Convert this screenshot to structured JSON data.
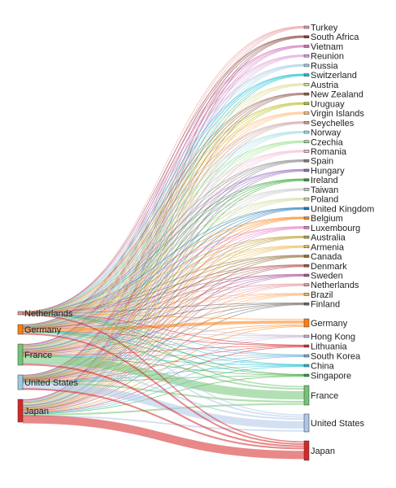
{
  "chart_data": {
    "type": "sankey",
    "title": "",
    "sources": [
      {
        "name": "Netherlands",
        "color": "#e7969c",
        "value": 1
      },
      {
        "name": "Germany",
        "color": "#ff7f0e",
        "value": 3
      },
      {
        "name": "France",
        "color": "#74c476",
        "value": 8
      },
      {
        "name": "United States",
        "color": "#9ecae1",
        "value": 5
      },
      {
        "name": "Japan",
        "color": "#d62728",
        "value": 9
      }
    ],
    "targets": [
      {
        "name": "Turkey",
        "color": "#e7969c",
        "value": 0.3
      },
      {
        "name": "South Africa",
        "color": "#843c39",
        "value": 0.3
      },
      {
        "name": "Vietnam",
        "color": "#ce6dbd",
        "value": 0.3
      },
      {
        "name": "Reunion",
        "color": "#de9ed6",
        "value": 0.3
      },
      {
        "name": "Russia",
        "color": "#9ecae1",
        "value": 0.3
      },
      {
        "name": "Switzerland",
        "color": "#17becf",
        "value": 0.3
      },
      {
        "name": "Austria",
        "color": "#dbdb8d",
        "value": 0.3
      },
      {
        "name": "New Zealand",
        "color": "#8c564b",
        "value": 0.3
      },
      {
        "name": "Uruguay",
        "color": "#bcbd22",
        "value": 0.3
      },
      {
        "name": "Virgin Islands",
        "color": "#ffbb78",
        "value": 0.3
      },
      {
        "name": "Seychelles",
        "color": "#c49c94",
        "value": 0.3
      },
      {
        "name": "Norway",
        "color": "#9edae5",
        "value": 0.3
      },
      {
        "name": "Czechia",
        "color": "#98df8a",
        "value": 0.3
      },
      {
        "name": "Romania",
        "color": "#f7b6d2",
        "value": 0.3
      },
      {
        "name": "Spain",
        "color": "#7f7f7f",
        "value": 0.3
      },
      {
        "name": "Hungary",
        "color": "#9467bd",
        "value": 0.3
      },
      {
        "name": "Ireland",
        "color": "#2ca02c",
        "value": 0.3
      },
      {
        "name": "Taiwan",
        "color": "#c7c7c7",
        "value": 0.3
      },
      {
        "name": "Poland",
        "color": "#cedb9c",
        "value": 0.3
      },
      {
        "name": "United Kingdom",
        "color": "#1f77b4",
        "value": 0.3
      },
      {
        "name": "Belgium",
        "color": "#ff7f0e",
        "value": 0.3
      },
      {
        "name": "Luxembourg",
        "color": "#e377c2",
        "value": 0.3
      },
      {
        "name": "Australia",
        "color": "#bd9e39",
        "value": 0.3
      },
      {
        "name": "Armenia",
        "color": "#e7ba52",
        "value": 0.3
      },
      {
        "name": "Canada",
        "color": "#8c6d31",
        "value": 0.3
      },
      {
        "name": "Denmark",
        "color": "#ad494a",
        "value": 0.3
      },
      {
        "name": "Sweden",
        "color": "#a55194",
        "value": 0.3
      },
      {
        "name": "Netherlands",
        "color": "#e7969c",
        "value": 0.3
      },
      {
        "name": "Brazil",
        "color": "#fdae6b",
        "value": 0.3
      },
      {
        "name": "Finland",
        "color": "#636363",
        "value": 0.3
      },
      {
        "name": "Germany",
        "color": "#ff7f0e",
        "value": 1.5
      },
      {
        "name": "Hong Kong",
        "color": "#c5b0d5",
        "value": 0.3
      },
      {
        "name": "Lithuania",
        "color": "#d62728",
        "value": 0.3
      },
      {
        "name": "South Korea",
        "color": "#6baed6",
        "value": 0.3
      },
      {
        "name": "China",
        "color": "#17becf",
        "value": 0.3
      },
      {
        "name": "Singapore",
        "color": "#2ca02c",
        "value": 0.3
      },
      {
        "name": "France",
        "color": "#74c476",
        "value": 3.5
      },
      {
        "name": "United States",
        "color": "#aec7e8",
        "value": 3.5
      },
      {
        "name": "Japan",
        "color": "#d62728",
        "value": 3.5
      }
    ]
  }
}
